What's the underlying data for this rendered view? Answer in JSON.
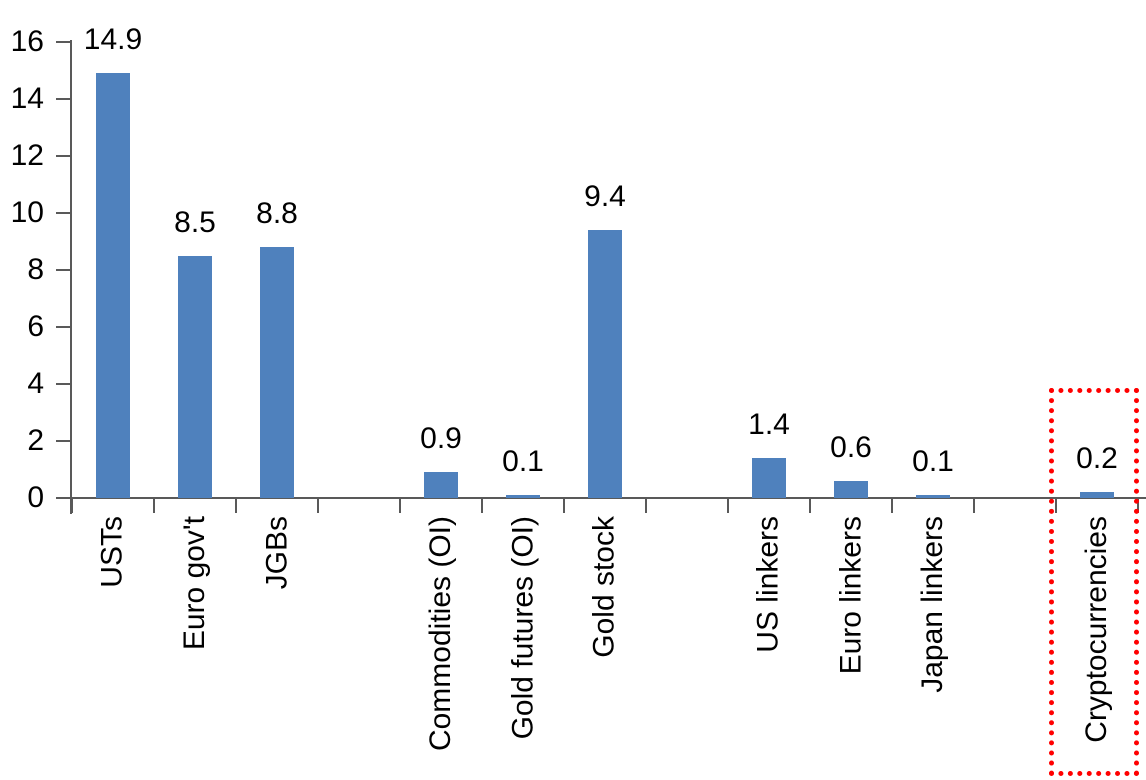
{
  "chart_data": {
    "type": "bar",
    "title": "",
    "xlabel": "",
    "ylabel": "",
    "categories": [
      "USTs",
      "Euro gov't",
      "JGBs",
      "Commodities (OI)",
      "Gold futures (OI)",
      "Gold stock",
      "US linkers",
      "Euro linkers",
      "Japan linkers",
      "Cryptocurrencies"
    ],
    "values": [
      14.9,
      8.5,
      8.8,
      0.9,
      0.1,
      9.4,
      1.4,
      0.6,
      0.1,
      0.2
    ],
    "value_labels": [
      "14.9",
      "8.5",
      "8.8",
      "0.9",
      "0.1",
      "9.4",
      "1.4",
      "0.6",
      "0.1",
      "0.2"
    ],
    "slot_indices": [
      0,
      1,
      2,
      4,
      5,
      6,
      8,
      9,
      10,
      12
    ],
    "num_slots": 13,
    "ylim": [
      0,
      16
    ],
    "yticks": [
      0,
      2,
      4,
      6,
      8,
      10,
      12,
      14,
      16
    ],
    "grid": false,
    "legend": "none",
    "bar_color": "#4F81BD",
    "axis_color": "#595959",
    "text_color": "#000000",
    "highlight": {
      "category": "Cryptocurrencies",
      "shape": "dotted-rectangle",
      "color": "#FF0000"
    }
  }
}
